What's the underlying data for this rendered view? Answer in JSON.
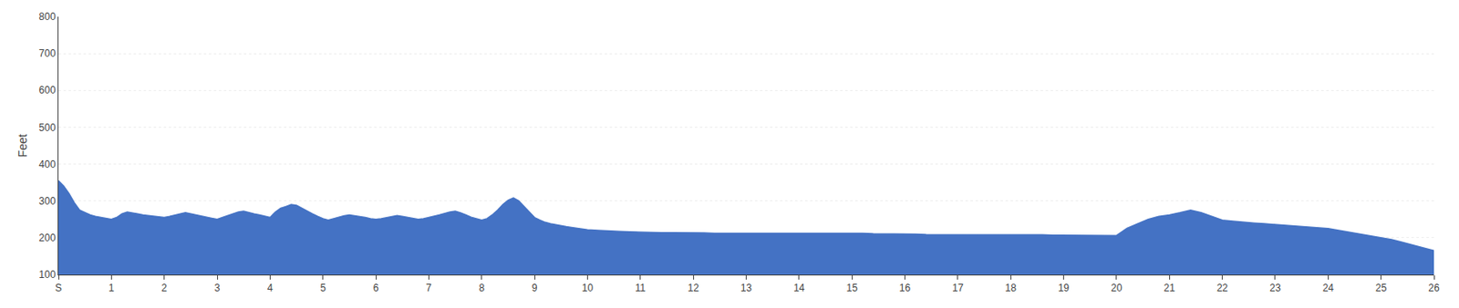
{
  "chart_data": {
    "type": "area",
    "ylabel": "Feet",
    "color": "#4472c4",
    "grid": true,
    "xlim": [
      0,
      26
    ],
    "xticks": [
      {
        "value": 0,
        "label": "S"
      },
      1,
      2,
      3,
      4,
      5,
      6,
      7,
      8,
      9,
      10,
      11,
      12,
      13,
      14,
      15,
      16,
      17,
      18,
      19,
      20,
      21,
      22,
      23,
      24,
      25,
      26
    ],
    "ylim": [
      100,
      800
    ],
    "yticks": [
      100,
      200,
      300,
      400,
      500,
      600,
      700,
      800
    ],
    "x": [
      0.0,
      0.1,
      0.2,
      0.3,
      0.4,
      0.5,
      0.6,
      0.7,
      0.8,
      0.9,
      1.0,
      1.1,
      1.2,
      1.3,
      1.4,
      1.5,
      1.6,
      1.7,
      1.8,
      1.9,
      2.0,
      2.1,
      2.2,
      2.3,
      2.4,
      2.5,
      2.6,
      2.7,
      2.8,
      2.9,
      3.0,
      3.1,
      3.2,
      3.3,
      3.4,
      3.5,
      3.6,
      3.7,
      3.8,
      3.9,
      4.0,
      4.1,
      4.2,
      4.3,
      4.4,
      4.5,
      4.6,
      4.7,
      4.8,
      4.9,
      5.0,
      5.1,
      5.2,
      5.3,
      5.4,
      5.5,
      5.6,
      5.7,
      5.8,
      5.9,
      6.0,
      6.1,
      6.2,
      6.3,
      6.4,
      6.5,
      6.6,
      6.7,
      6.8,
      6.9,
      7.0,
      7.1,
      7.2,
      7.3,
      7.4,
      7.5,
      7.6,
      7.7,
      7.8,
      7.9,
      8.0,
      8.1,
      8.2,
      8.3,
      8.4,
      8.5,
      8.6,
      8.7,
      8.8,
      8.9,
      9.0,
      9.1,
      9.2,
      9.3,
      9.4,
      9.5,
      9.6,
      9.7,
      9.8,
      9.9,
      10.0,
      10.2,
      10.4,
      10.6,
      10.8,
      11.0,
      11.2,
      11.4,
      11.6,
      11.8,
      12.0,
      12.2,
      12.4,
      12.6,
      12.8,
      13.0,
      13.2,
      13.4,
      13.6,
      13.8,
      14.0,
      14.2,
      14.4,
      14.6,
      14.8,
      15.0,
      15.2,
      15.4,
      15.6,
      15.8,
      16.0,
      16.2,
      16.4,
      16.6,
      16.8,
      17.0,
      17.2,
      17.4,
      17.6,
      17.8,
      18.0,
      18.2,
      18.4,
      18.6,
      18.8,
      19.0,
      19.2,
      19.4,
      19.6,
      19.8,
      20.0,
      20.2,
      20.4,
      20.6,
      20.8,
      21.0,
      21.2,
      21.4,
      21.6,
      21.8,
      22.0,
      22.2,
      22.4,
      22.6,
      22.8,
      23.0,
      23.2,
      23.4,
      23.6,
      23.8,
      24.0,
      24.2,
      24.4,
      24.6,
      24.8,
      25.0,
      25.2,
      25.4,
      25.6,
      25.8,
      26.0
    ],
    "values": [
      355,
      340,
      320,
      295,
      275,
      268,
      262,
      258,
      255,
      252,
      250,
      255,
      265,
      270,
      268,
      265,
      262,
      260,
      258,
      256,
      255,
      258,
      262,
      265,
      268,
      265,
      262,
      258,
      255,
      252,
      250,
      255,
      260,
      265,
      270,
      272,
      268,
      265,
      262,
      258,
      255,
      270,
      280,
      285,
      290,
      288,
      280,
      272,
      265,
      258,
      252,
      248,
      252,
      256,
      260,
      262,
      260,
      258,
      255,
      252,
      250,
      252,
      255,
      258,
      260,
      258,
      255,
      252,
      250,
      252,
      255,
      258,
      262,
      266,
      270,
      272,
      268,
      262,
      256,
      252,
      248,
      252,
      262,
      275,
      290,
      302,
      308,
      300,
      285,
      268,
      255,
      248,
      242,
      238,
      235,
      232,
      230,
      228,
      226,
      224,
      222,
      220,
      218,
      217,
      216,
      215,
      214,
      214,
      214,
      214,
      213,
      213,
      212,
      212,
      212,
      212,
      212,
      212,
      212,
      212,
      212,
      213,
      213,
      213,
      213,
      212,
      212,
      211,
      211,
      210,
      210,
      210,
      209,
      209,
      209,
      209,
      209,
      209,
      208,
      208,
      208,
      208,
      208,
      208,
      207,
      207,
      207,
      207,
      206,
      206,
      206,
      226,
      238,
      250,
      258,
      262,
      268,
      275,
      268,
      258,
      248,
      245,
      242,
      240,
      238,
      236,
      234,
      232,
      230,
      228,
      225,
      220,
      215,
      210,
      205,
      200,
      195,
      188,
      180,
      172,
      165
    ]
  }
}
